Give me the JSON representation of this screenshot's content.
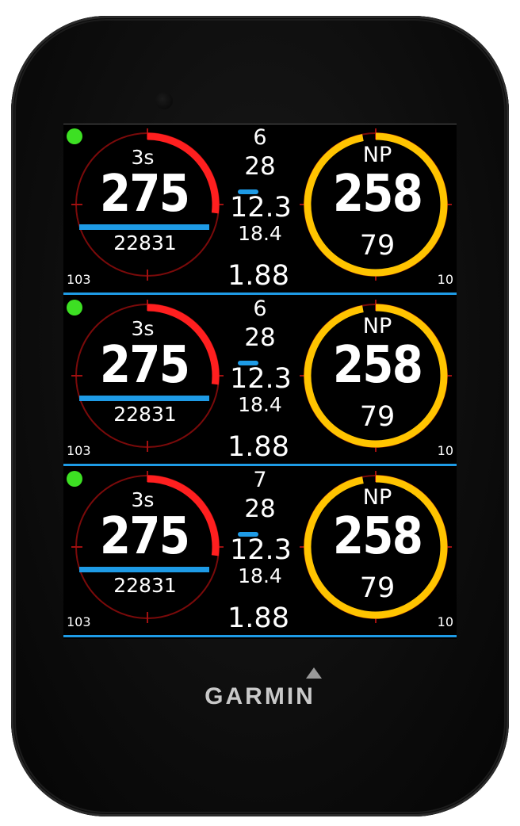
{
  "device": {
    "brand": "GARMIN",
    "brand_mark": "triangle-logo-icon"
  },
  "colors": {
    "power_arc": "#ff1f1f",
    "np_arc": "#ffc400",
    "accent_blue": "#1e9be6",
    "status_dot": "#3de023"
  },
  "panels": [
    {
      "label_3s": "3s",
      "power": "275",
      "kj": "22831",
      "corner_left": "103",
      "c_line1": "6",
      "c_line2": "28",
      "c_line3": "12.3",
      "c_line4": "18.4",
      "c_line5": "1.88",
      "np_label": "NP",
      "np_value": "258",
      "np_sub": "79",
      "corner_right": "10",
      "power_arc_fraction": 0.27,
      "np_arc_fraction": 0.97
    },
    {
      "label_3s": "3s",
      "power": "275",
      "kj": "22831",
      "corner_left": "103",
      "c_line1": "6",
      "c_line2": "28",
      "c_line3": "12.3",
      "c_line4": "18.4",
      "c_line5": "1.88",
      "np_label": "NP",
      "np_value": "258",
      "np_sub": "79",
      "corner_right": "10",
      "power_arc_fraction": 0.27,
      "np_arc_fraction": 0.97
    },
    {
      "label_3s": "3s",
      "power": "275",
      "kj": "22831",
      "corner_left": "103",
      "c_line1": "7",
      "c_line2": "28",
      "c_line3": "12.3",
      "c_line4": "18.4",
      "c_line5": "1.88",
      "np_label": "NP",
      "np_value": "258",
      "np_sub": "79",
      "corner_right": "10",
      "power_arc_fraction": 0.27,
      "np_arc_fraction": 0.97
    }
  ]
}
